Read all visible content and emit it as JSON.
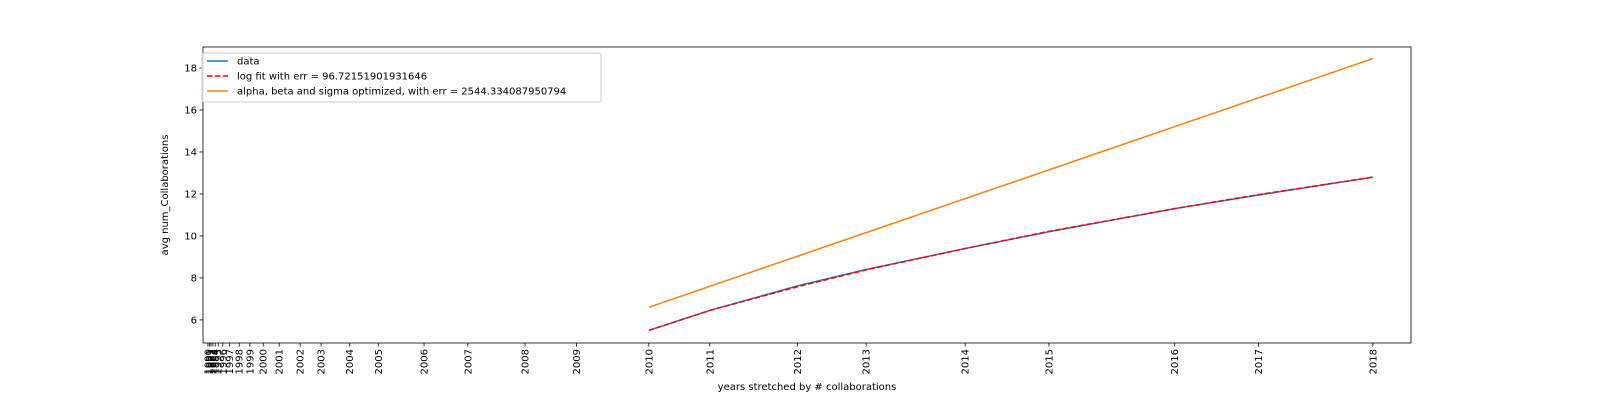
{
  "chart_data": {
    "type": "line",
    "xlabel": "years stretched by # collaborations",
    "ylabel": "avg num_Collaborations",
    "ylim": [
      4.9,
      19.0
    ],
    "yticks": [
      6,
      8,
      10,
      12,
      14,
      16,
      18
    ],
    "ytick_labels": [
      "6",
      "8",
      "10",
      "12",
      "14",
      "16",
      "18"
    ],
    "x_scale": "stretched by # collaborations",
    "xticks": [
      {
        "label": "1990",
        "value": 0.03
      },
      {
        "label": "1991",
        "value": 0.07
      },
      {
        "label": "1992",
        "value": 0.11
      },
      {
        "label": "1993",
        "value": 0.16
      },
      {
        "label": "1994",
        "value": 0.22
      },
      {
        "label": "1995",
        "value": 0.3
      },
      {
        "label": "1996",
        "value": 0.42
      },
      {
        "label": "1997",
        "value": 0.6
      },
      {
        "label": "1998",
        "value": 0.85
      },
      {
        "label": "1999",
        "value": 1.13
      },
      {
        "label": "2000",
        "value": 1.48
      },
      {
        "label": "2001",
        "value": 1.9
      },
      {
        "label": "2002",
        "value": 2.45
      },
      {
        "label": "2003",
        "value": 3.0
      },
      {
        "label": "2004",
        "value": 3.75
      },
      {
        "label": "2005",
        "value": 4.5
      },
      {
        "label": "2006",
        "value": 5.7
      },
      {
        "label": "2007",
        "value": 6.85
      },
      {
        "label": "2008",
        "value": 8.35
      },
      {
        "label": "2009",
        "value": 9.7
      },
      {
        "label": "2010",
        "value": 11.6
      },
      {
        "label": "2011",
        "value": 13.2
      },
      {
        "label": "2012",
        "value": 15.5
      },
      {
        "label": "2013",
        "value": 17.3
      },
      {
        "label": "2014",
        "value": 19.9
      },
      {
        "label": "2015",
        "value": 22.1
      },
      {
        "label": "2016",
        "value": 25.4
      },
      {
        "label": "2017",
        "value": 27.6
      },
      {
        "label": "2018",
        "value": 30.6
      }
    ],
    "xlim": [
      -0.1,
      31.6
    ],
    "legend_position": "upper-left",
    "grid": false,
    "series": [
      {
        "name": "data",
        "color": "#1f77b4",
        "style": "solid",
        "x": [
          11.6,
          13.2,
          15.5,
          17.3,
          19.9,
          22.1,
          25.4,
          27.6,
          30.6
        ],
        "y": [
          5.5,
          6.45,
          7.62,
          8.4,
          9.4,
          10.2,
          11.3,
          11.95,
          12.8
        ]
      },
      {
        "name": "log fit with err = 96.72151901931646",
        "color": "#ff0000",
        "style": "dashed",
        "x": [
          11.6,
          13.2,
          15.5,
          17.3,
          19.9,
          22.1,
          25.4,
          27.6,
          30.6
        ],
        "y": [
          5.5,
          6.45,
          7.58,
          8.38,
          9.4,
          10.22,
          11.3,
          11.97,
          12.8
        ]
      },
      {
        "name": "alpha, beta and sigma optimized, with err = 2544.334087950794",
        "color": "#ff7f0e",
        "style": "solid",
        "x": [
          11.6,
          30.6
        ],
        "y": [
          6.6,
          18.45
        ]
      }
    ]
  }
}
